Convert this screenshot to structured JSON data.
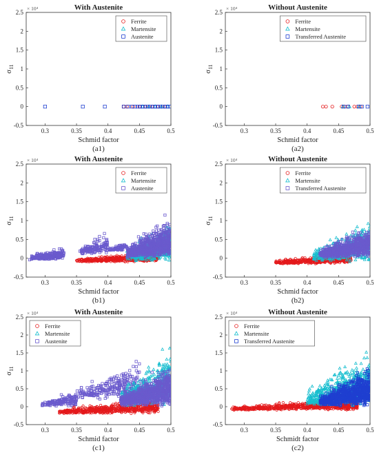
{
  "chart_data": [
    {
      "type": "scatter",
      "panel_label": "(a1)",
      "title": "With Austenite",
      "xlabel": "Schmid factor",
      "ylabel": "σ",
      "ylabel_sub": "11",
      "y_exponent": "× 10⁴",
      "xlim": [
        0.27,
        0.5
      ],
      "ylim": [
        -0.5,
        2.5
      ],
      "xticks": [
        "0.3",
        "0.35",
        "0.4",
        "0.45",
        "0.5"
      ],
      "yticks": [
        "-0.5",
        "0",
        "0.5",
        "1",
        "1.5",
        "2",
        "2.5"
      ],
      "legend_position": "top-right",
      "legend_style": "plain",
      "series": [
        {
          "name": "Ferrite",
          "marker": "circle",
          "color": "#e41a1c",
          "points": [
            [
              0.425,
              0.0
            ],
            [
              0.43,
              0.0
            ],
            [
              0.44,
              0.0
            ],
            [
              0.45,
              0.0
            ],
            [
              0.46,
              0.0
            ],
            [
              0.47,
              0.0
            ],
            [
              0.48,
              0.0
            ],
            [
              0.49,
              0.0
            ]
          ]
        },
        {
          "name": "Martensite",
          "marker": "triangle",
          "color": "#17becf",
          "points": [
            [
              0.455,
              0.0
            ],
            [
              0.465,
              0.0
            ],
            [
              0.475,
              0.0
            ],
            [
              0.485,
              0.0
            ],
            [
              0.495,
              0.0
            ]
          ]
        },
        {
          "name": "Austenite",
          "marker": "square",
          "color": "#1f3fd0",
          "points": [
            [
              0.3,
              0.0
            ],
            [
              0.36,
              0.0
            ],
            [
              0.395,
              0.0
            ],
            [
              0.425,
              0.0
            ],
            [
              0.432,
              0.0
            ],
            [
              0.438,
              0.0
            ],
            [
              0.443,
              0.0
            ],
            [
              0.447,
              0.0
            ],
            [
              0.451,
              0.0
            ],
            [
              0.455,
              0.0
            ],
            [
              0.459,
              0.0
            ],
            [
              0.463,
              0.0
            ],
            [
              0.467,
              0.0
            ],
            [
              0.471,
              0.0
            ],
            [
              0.475,
              0.0
            ],
            [
              0.479,
              0.0
            ],
            [
              0.483,
              0.0
            ],
            [
              0.487,
              0.0
            ],
            [
              0.491,
              0.0
            ],
            [
              0.495,
              0.0
            ],
            [
              0.499,
              0.0
            ]
          ]
        }
      ]
    },
    {
      "type": "scatter",
      "panel_label": "(a2)",
      "title": "Without Austenite",
      "xlabel": "Schmid factor",
      "ylabel": "σ",
      "ylabel_sub": "11",
      "y_exponent": "× 10⁴",
      "xlim": [
        0.27,
        0.5
      ],
      "ylim": [
        -0.5,
        2.5
      ],
      "xticks": [
        "0.3",
        "0.35",
        "0.4",
        "0.45",
        "0.5"
      ],
      "yticks": [
        "-0.5",
        "0",
        "0.5",
        "1",
        "1.5",
        "2",
        "2.5"
      ],
      "legend_position": "top-right",
      "legend_style": "plain",
      "series": [
        {
          "name": "Ferrite",
          "marker": "circle",
          "color": "#e41a1c",
          "points": [
            [
              0.425,
              0.0
            ],
            [
              0.43,
              0.0
            ],
            [
              0.44,
              0.0
            ],
            [
              0.455,
              0.0
            ],
            [
              0.46,
              0.0
            ],
            [
              0.465,
              0.0
            ],
            [
              0.475,
              0.0
            ],
            [
              0.48,
              0.0
            ],
            [
              0.485,
              0.0
            ]
          ]
        },
        {
          "name": "Martensite",
          "marker": "triangle",
          "color": "#17becf",
          "points": [
            [
              0.457,
              0.0
            ],
            [
              0.467,
              0.0
            ],
            [
              0.483,
              0.0
            ]
          ]
        },
        {
          "name": "Transferred Austenite",
          "marker": "square",
          "color": "#1f3fd0",
          "points": [
            [
              0.458,
              0.0
            ],
            [
              0.465,
              0.0
            ],
            [
              0.482,
              0.0
            ],
            [
              0.487,
              0.0
            ],
            [
              0.496,
              0.0
            ]
          ]
        }
      ]
    },
    {
      "type": "scatter",
      "panel_label": "(b1)",
      "title": "With Austenite",
      "xlabel": "Schmid factor",
      "ylabel": "σ",
      "ylabel_sub": "11",
      "y_exponent": "× 10⁴",
      "xlim": [
        0.27,
        0.5
      ],
      "ylim": [
        -0.5,
        2.5
      ],
      "xticks": [
        "0.3",
        "0.35",
        "0.4",
        "0.45",
        "0.5"
      ],
      "yticks": [
        "-0.5",
        "0",
        "0.5",
        "1",
        "1.5",
        "2",
        "2.5"
      ],
      "legend_position": "top-right",
      "legend_style": "light",
      "clusters": [
        {
          "series": 2,
          "x": [
            0.275,
            0.33
          ],
          "y": [
            -0.05,
            0.4
          ],
          "n": 220,
          "seed": 11
        },
        {
          "series": 2,
          "x": [
            0.355,
            0.4
          ],
          "y": [
            0.1,
            0.85
          ],
          "n": 140,
          "seed": 12
        },
        {
          "series": 2,
          "x": [
            0.4,
            0.43
          ],
          "y": [
            0.2,
            0.5
          ],
          "n": 60,
          "seed": 13
        },
        {
          "series": 0,
          "x": [
            0.35,
            0.48
          ],
          "y": [
            -0.1,
            0.25
          ],
          "n": 520,
          "seed": 14
        },
        {
          "series": 1,
          "x": [
            0.43,
            0.5
          ],
          "y": [
            -0.1,
            1.3
          ],
          "n": 520,
          "seed": 15
        },
        {
          "series": 2,
          "x": [
            0.43,
            0.5
          ],
          "y": [
            0.0,
            1.4
          ],
          "n": 700,
          "seed": 16
        }
      ],
      "series": [
        {
          "name": "Ferrite",
          "marker": "circle",
          "color": "#e41a1c",
          "points": []
        },
        {
          "name": "Martensite",
          "marker": "triangle",
          "color": "#17becf",
          "points": []
        },
        {
          "name": "Austenite",
          "marker": "square",
          "color": "#6a5acd",
          "points": []
        }
      ]
    },
    {
      "type": "scatter",
      "panel_label": "(b2)",
      "title": "Without Austenite",
      "xlabel": "Schmid factor",
      "ylabel": "σ",
      "ylabel_sub": "11",
      "y_exponent": "× 10⁴",
      "xlim": [
        0.27,
        0.5
      ],
      "ylim": [
        -0.5,
        2.5
      ],
      "xticks": [
        "0.3",
        "0.35",
        "0.4",
        "0.45",
        "0.5"
      ],
      "yticks": [
        "-0.5",
        "0",
        "0.5",
        "1",
        "1.5",
        "2",
        "2.5"
      ],
      "legend_position": "top-right",
      "legend_style": "light",
      "clusters": [
        {
          "series": 0,
          "x": [
            0.35,
            0.47
          ],
          "y": [
            -0.15,
            0.25
          ],
          "n": 520,
          "seed": 21
        },
        {
          "series": 1,
          "x": [
            0.41,
            0.5
          ],
          "y": [
            -0.1,
            1.3
          ],
          "n": 520,
          "seed": 22
        },
        {
          "series": 2,
          "x": [
            0.42,
            0.5
          ],
          "y": [
            0.0,
            1.1
          ],
          "n": 700,
          "seed": 23
        }
      ],
      "series": [
        {
          "name": "Ferrite",
          "marker": "circle",
          "color": "#e41a1c",
          "points": []
        },
        {
          "name": "Martensite",
          "marker": "triangle",
          "color": "#17becf",
          "points": []
        },
        {
          "name": "Transferred Austenite",
          "marker": "square",
          "color": "#6a5acd",
          "points": []
        }
      ]
    },
    {
      "type": "scatter",
      "panel_label": "(c1)",
      "title": "With Austenite",
      "xlabel": "Schmid factor",
      "ylabel": "σ",
      "ylabel_sub": "11",
      "y_exponent": "× 10⁴",
      "xlim": [
        0.27,
        0.5
      ],
      "ylim": [
        -0.5,
        2.5
      ],
      "xticks": [
        "0.3",
        "0.35",
        "0.4",
        "0.45",
        "0.5"
      ],
      "yticks": [
        "-0.5",
        "0",
        "0.5",
        "1",
        "1.5",
        "2",
        "2.5"
      ],
      "legend_position": "top-left",
      "legend_style": "light",
      "clusters": [
        {
          "series": 2,
          "x": [
            0.295,
            0.35
          ],
          "y": [
            0.0,
            0.6
          ],
          "n": 160,
          "seed": 31
        },
        {
          "series": 2,
          "x": [
            0.35,
            0.45
          ],
          "y": [
            0.2,
            1.6
          ],
          "n": 260,
          "seed": 32
        },
        {
          "series": 0,
          "x": [
            0.32,
            0.48
          ],
          "y": [
            -0.2,
            0.35
          ],
          "n": 650,
          "seed": 33
        },
        {
          "series": 1,
          "x": [
            0.42,
            0.5
          ],
          "y": [
            0.0,
            2.0
          ],
          "n": 560,
          "seed": 34
        },
        {
          "series": 2,
          "x": [
            0.42,
            0.5
          ],
          "y": [
            0.0,
            1.5
          ],
          "n": 800,
          "seed": 35
        }
      ],
      "series": [
        {
          "name": "Ferrite",
          "marker": "circle",
          "color": "#e41a1c",
          "points": []
        },
        {
          "name": "Martensite",
          "marker": "triangle",
          "color": "#17becf",
          "points": []
        },
        {
          "name": "Austenite",
          "marker": "square",
          "color": "#6a5acd",
          "points": []
        }
      ]
    },
    {
      "type": "scatter",
      "panel_label": "(c2)",
      "title": "Without Austenite",
      "xlabel": "Schmidt factor",
      "ylabel": "",
      "ylabel_sub": "",
      "y_exponent": "× 10⁴",
      "xlim": [
        0.27,
        0.5
      ],
      "ylim": [
        -0.5,
        2.5
      ],
      "xticks": [
        "0.3",
        "0.35",
        "0.4",
        "0.45",
        "0.5"
      ],
      "yticks": [
        "-0.5",
        "0",
        "0.5",
        "1",
        "1.5",
        "2",
        "2.5"
      ],
      "legend_position": "top-left",
      "legend_style": "plain",
      "clusters": [
        {
          "series": 0,
          "x": [
            0.28,
            0.48
          ],
          "y": [
            -0.1,
            0.35
          ],
          "n": 720,
          "seed": 41
        },
        {
          "series": 1,
          "x": [
            0.4,
            0.5
          ],
          "y": [
            0.0,
            2.0
          ],
          "n": 560,
          "seed": 42
        },
        {
          "series": 2,
          "x": [
            0.42,
            0.5
          ],
          "y": [
            0.0,
            1.4
          ],
          "n": 800,
          "seed": 43
        }
      ],
      "series": [
        {
          "name": "Ferrite",
          "marker": "circle",
          "color": "#e41a1c",
          "points": []
        },
        {
          "name": "Martensite",
          "marker": "triangle",
          "color": "#17becf",
          "points": []
        },
        {
          "name": "Transferred Austenite",
          "marker": "square",
          "color": "#1f3fd0",
          "points": []
        }
      ]
    }
  ]
}
